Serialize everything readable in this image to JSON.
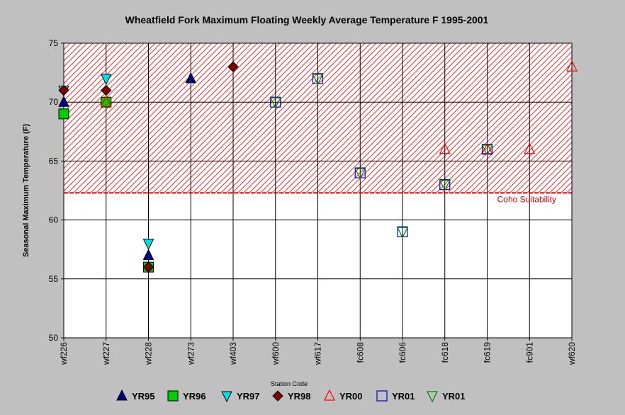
{
  "chart_data": {
    "type": "scatter",
    "title": "Wheatfield Fork Maximum Floating Weekly Average Temperature F 1995-2001",
    "xlabel": "Station Code",
    "ylabel": "Seasonal Maximum Temperature (F)",
    "ylim": [
      50,
      75
    ],
    "yticks": [
      50,
      55,
      60,
      65,
      70,
      75
    ],
    "categories": [
      "wf226",
      "wf227",
      "wf228",
      "wf273",
      "wf403",
      "wf600",
      "wf617",
      "fc608",
      "fc606",
      "fc618",
      "fc619",
      "fc901",
      "wf620"
    ],
    "grid": true,
    "threshold": {
      "label": "Coho Suitability",
      "value": 62.3,
      "color": "#cc0000"
    },
    "legend_position": "bottom",
    "series": [
      {
        "name": "YR95",
        "marker": "triangle-up",
        "color": "#000080",
        "filled": true,
        "points": [
          {
            "x": "wf226",
            "y": 70
          },
          {
            "x": "wf228",
            "y": 57
          },
          {
            "x": "wf273",
            "y": 72
          }
        ]
      },
      {
        "name": "YR96",
        "marker": "square",
        "color": "#00cc00",
        "filled": true,
        "points": [
          {
            "x": "wf226",
            "y": 69
          },
          {
            "x": "wf227",
            "y": 70
          },
          {
            "x": "wf228",
            "y": 56
          }
        ]
      },
      {
        "name": "YR97",
        "marker": "triangle-down",
        "color": "#00e0e0",
        "filled": true,
        "points": [
          {
            "x": "wf226",
            "y": 71
          },
          {
            "x": "wf227",
            "y": 72
          },
          {
            "x": "wf228",
            "y": 58
          }
        ]
      },
      {
        "name": "YR98",
        "marker": "diamond",
        "color": "#800000",
        "filled": true,
        "points": [
          {
            "x": "wf226",
            "y": 71
          },
          {
            "x": "wf227",
            "y": 71
          },
          {
            "x": "wf228",
            "y": 56
          },
          {
            "x": "wf403",
            "y": 73
          }
        ]
      },
      {
        "name": "YR00",
        "marker": "triangle-up",
        "color": "#ff0000",
        "filled": false,
        "points": [
          {
            "x": "wf227",
            "y": 70
          },
          {
            "x": "fc618",
            "y": 66
          },
          {
            "x": "fc619",
            "y": 66
          },
          {
            "x": "fc901",
            "y": 66
          },
          {
            "x": "wf620",
            "y": 73
          }
        ]
      },
      {
        "name": "YR01",
        "marker": "square",
        "color": "#0000cc",
        "filled": false,
        "points": [
          {
            "x": "wf600",
            "y": 70
          },
          {
            "x": "wf617",
            "y": 72
          },
          {
            "x": "fc608",
            "y": 64
          },
          {
            "x": "fc606",
            "y": 59
          },
          {
            "x": "fc618",
            "y": 63
          },
          {
            "x": "fc619",
            "y": 66
          }
        ]
      },
      {
        "name": "YR01",
        "marker": "triangle-down",
        "color": "#008000",
        "filled": false,
        "points": [
          {
            "x": "wf600",
            "y": 70
          },
          {
            "x": "wf617",
            "y": 72
          },
          {
            "x": "fc608",
            "y": 64
          },
          {
            "x": "fc606",
            "y": 59
          },
          {
            "x": "fc618",
            "y": 63
          },
          {
            "x": "fc619",
            "y": 66
          }
        ]
      }
    ]
  }
}
